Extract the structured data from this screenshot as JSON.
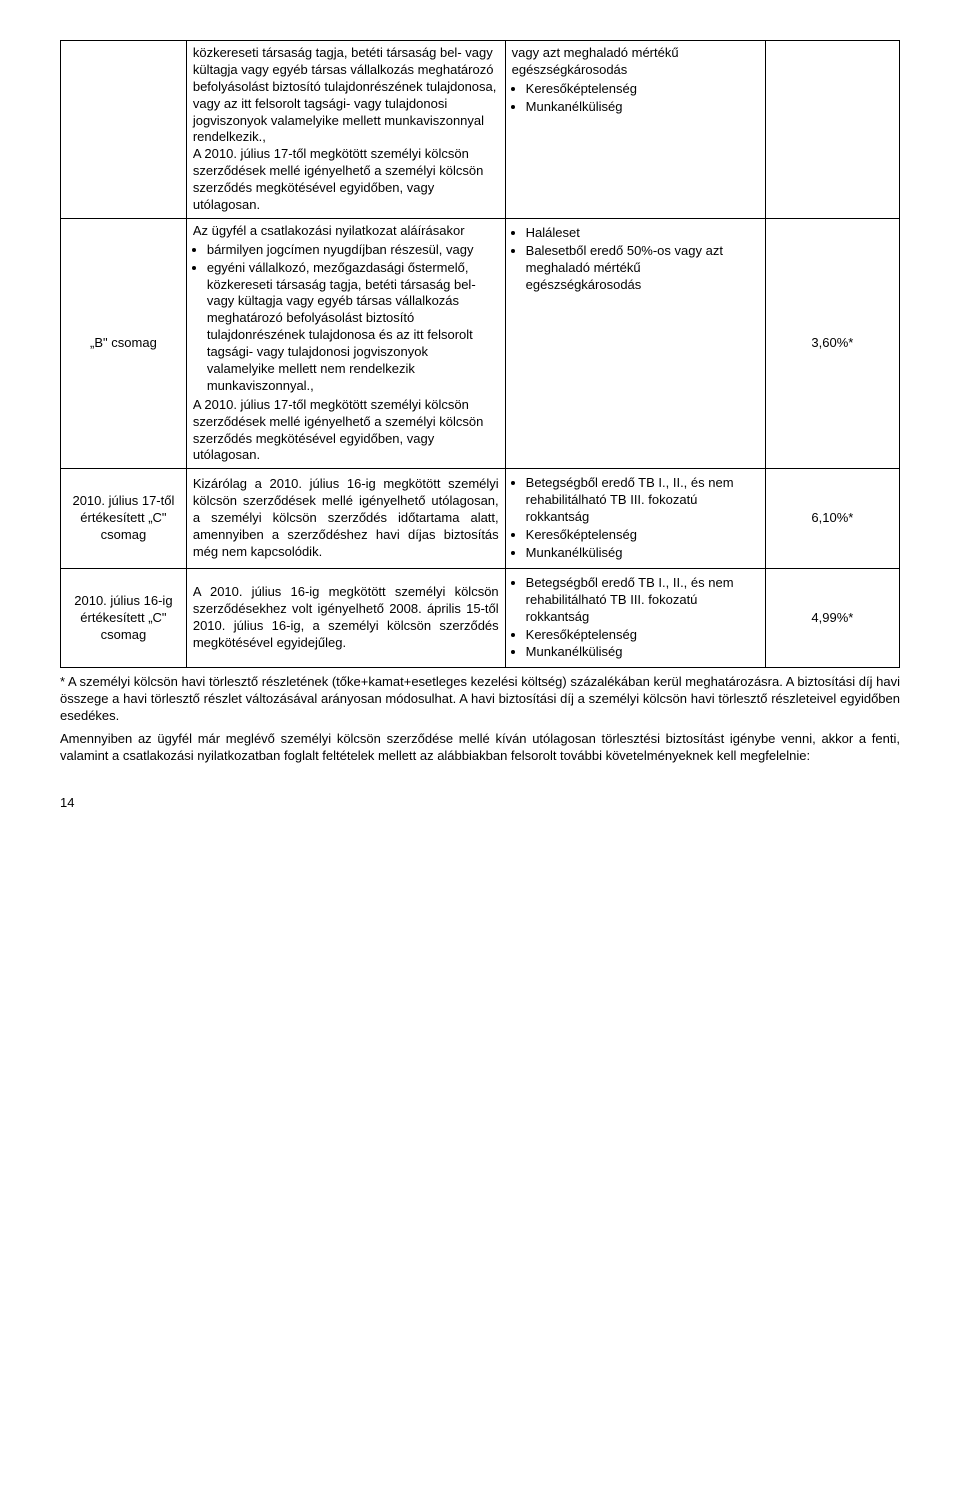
{
  "table": {
    "rows": [
      {
        "c1": "",
        "c2_intro": "közkereseti társaság tagja, betéti társaság bel- vagy kültagja vagy egyéb társas vállalkozás meghatározó befolyásolást biztosító tulajdonrészének tulajdonosa, vagy az itt felsorolt tagsági- vagy tulajdonosi jogviszonyok valamelyike mellett munkaviszonnyal rendelkezik.,",
        "c2_extra": "A 2010. július 17-től megkötött személyi kölcsön szerződések mellé igényelhető a személyi kölcsön szerződés megkötésével egyidőben, vagy utólagosan.",
        "c3_intro": "vagy azt meghaladó mértékű egészségkárosodás",
        "c3_items": [
          "Keresőképtelenség",
          "Munkanélküliség"
        ],
        "c4": ""
      },
      {
        "c1": "„B\" csomag",
        "c2_intro": "Az ügyfél a csatlakozási nyilatkozat aláírásakor",
        "c2_items": [
          "bármilyen jogcímen nyugdíjban részesül, vagy",
          "egyéni vállalkozó, mezőgazdasági őstermelő, közkereseti társaság tagja, betéti társaság bel- vagy kültagja vagy egyéb társas vállalkozás meghatározó befolyásolást biztosító tulajdonrészének tulajdonosa és az itt felsorolt tagsági- vagy tulajdonosi jogviszonyok valamelyike mellett nem rendelkezik munkaviszonnyal.,"
        ],
        "c2_extra": "A 2010. július 17-től megkötött személyi kölcsön szerződések mellé igényelhető a személyi kölcsön szerződés megkötésével egyidőben, vagy utólagosan.",
        "c3_items": [
          "Haláleset",
          "Balesetből eredő 50%-os vagy azt meghaladó mértékű egészségkárosodás"
        ],
        "c4": "3,60%*"
      },
      {
        "c1": "2010. július 17-től értékesített „C\" csomag",
        "c2_intro": "Kizárólag a 2010. július 16-ig megkötött személyi kölcsön szerződések mellé igényelhető utólagosan, a személyi kölcsön szerződés időtartama alatt, amennyiben a szerződéshez havi díjas biztosítás még nem kapcsolódik.",
        "c3_items": [
          "Betegségből eredő TB I., II., és nem rehabilitálható TB III. fokozatú rokkantság",
          "Keresőképtelenség",
          "Munkanélküliség"
        ],
        "c4": "6,10%*"
      },
      {
        "c1": "2010. július 16-ig értékesített „C\" csomag",
        "c2_intro": "A 2010. július 16-ig megkötött személyi kölcsön szerződésekhez volt igényelhető 2008. április 15-től 2010. július 16-ig, a személyi kölcsön szerződés megkötésével egyidejűleg.",
        "c3_items": [
          "Betegségből eredő TB I., II., és nem rehabilitálható TB III. fokozatú rokkantság",
          "Keresőképtelenség",
          "Munkanélküliség"
        ],
        "c4": "4,99%*"
      }
    ]
  },
  "footnote": "* A személyi kölcsön havi törlesztő részletének (tőke+kamat+esetleges kezelési költség) százalékában kerül meghatározásra. A biztosítási díj havi összege a havi törlesztő részlet változásával arányosan módosulhat. A havi biztosítási díj a személyi kölcsön havi törlesztő részleteivel egyidőben esedékes.",
  "paragraph": "Amennyiben az ügyfél már meglévő személyi kölcsön szerződése mellé kíván utólagosan törlesztési biztosítást igénybe venni, akkor a fenti, valamint a csatlakozási nyilatkozatban foglalt feltételek mellett az alábbiakban felsorolt további követelményeknek kell megfelelnie:",
  "page_number": "14"
}
